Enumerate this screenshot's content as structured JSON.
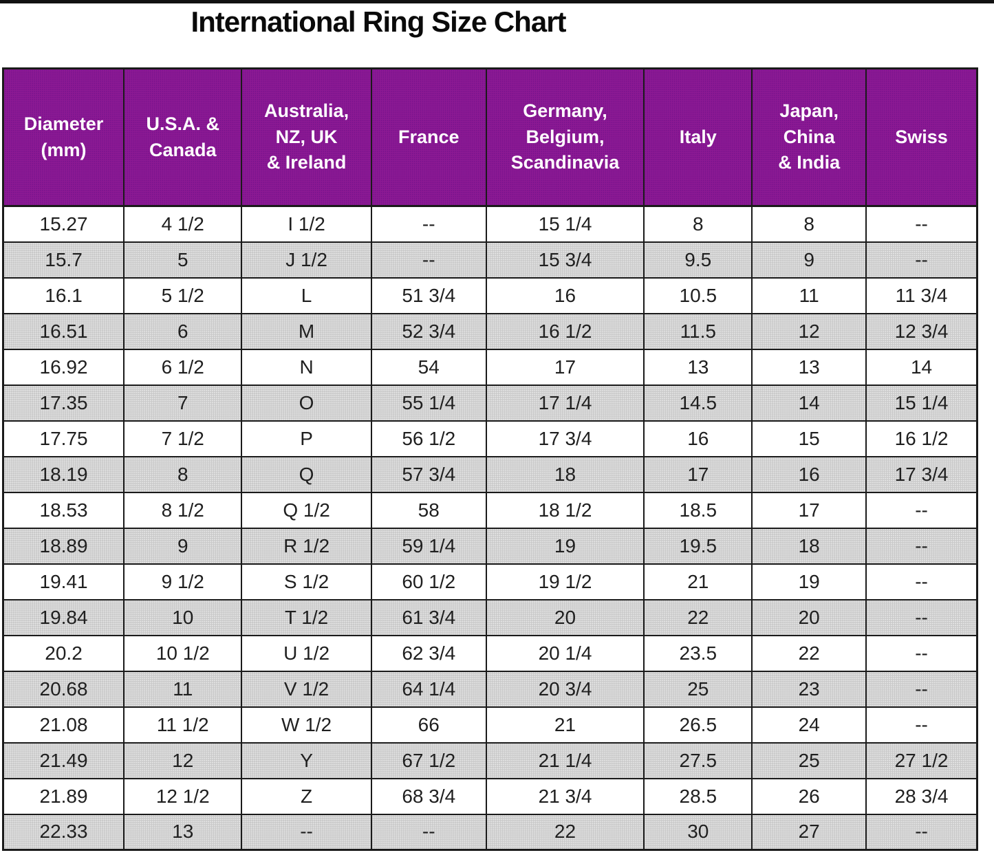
{
  "page": {
    "title": "International Ring Size Chart"
  },
  "colors": {
    "header_bg": "#8d1a94",
    "header_text": "#ffffff",
    "row_bg": "#ffffff",
    "row_alt_bg": "#c9c9c9",
    "border": "#1a1a1a",
    "text": "#1f1f1f",
    "title_text": "#0a0a0a",
    "topbar": "#111111"
  },
  "chart_data": {
    "type": "table",
    "title": "International Ring Size Chart",
    "columns": [
      "Diameter (mm)",
      "U.S.A. & Canada",
      "Australia, NZ, UK & Ireland",
      "France",
      "Germany, Belgium, Scandinavia",
      "Italy",
      "Japan, China & India",
      "Swiss"
    ],
    "columns_display": [
      "Diameter\n(mm)",
      "U.S.A. &\nCanada",
      "Australia,\nNZ, UK\n& Ireland",
      "France",
      "Germany,\nBelgium,\nScandinavia",
      "Italy",
      "Japan,\nChina\n& India",
      "Swiss"
    ],
    "column_keys": [
      "diameter-mm",
      "usa-canada",
      "australia-nz-uk-ireland",
      "france",
      "germany-belgium-scandinavia",
      "italy",
      "japan-china-india",
      "swiss"
    ],
    "col_widths_pct": [
      12.4,
      12.1,
      13.3,
      11.8,
      16.2,
      11.1,
      11.7,
      11.4
    ],
    "rows": [
      [
        "15.27",
        "4 1/2",
        "I 1/2",
        "--",
        "15 1/4",
        "8",
        "8",
        "--"
      ],
      [
        "15.7",
        "5",
        "J 1/2",
        "--",
        "15 3/4",
        "9.5",
        "9",
        "--"
      ],
      [
        "16.1",
        "5 1/2",
        "L",
        "51 3/4",
        "16",
        "10.5",
        "11",
        "11 3/4"
      ],
      [
        "16.51",
        "6",
        "M",
        "52 3/4",
        "16 1/2",
        "11.5",
        "12",
        "12 3/4"
      ],
      [
        "16.92",
        "6 1/2",
        "N",
        "54",
        "17",
        "13",
        "13",
        "14"
      ],
      [
        "17.35",
        "7",
        "O",
        "55 1/4",
        "17 1/4",
        "14.5",
        "14",
        "15 1/4"
      ],
      [
        "17.75",
        "7 1/2",
        "P",
        "56 1/2",
        "17 3/4",
        "16",
        "15",
        "16 1/2"
      ],
      [
        "18.19",
        "8",
        "Q",
        "57 3/4",
        "18",
        "17",
        "16",
        "17 3/4"
      ],
      [
        "18.53",
        "8 1/2",
        "Q 1/2",
        "58",
        "18 1/2",
        "18.5",
        "17",
        "--"
      ],
      [
        "18.89",
        "9",
        "R 1/2",
        "59 1/4",
        "19",
        "19.5",
        "18",
        "--"
      ],
      [
        "19.41",
        "9 1/2",
        "S 1/2",
        "60 1/2",
        "19 1/2",
        "21",
        "19",
        "--"
      ],
      [
        "19.84",
        "10",
        "T 1/2",
        "61 3/4",
        "20",
        "22",
        "20",
        "--"
      ],
      [
        "20.2",
        "10 1/2",
        "U 1/2",
        "62 3/4",
        "20 1/4",
        "23.5",
        "22",
        "--"
      ],
      [
        "20.68",
        "11",
        "V 1/2",
        "64 1/4",
        "20 3/4",
        "25",
        "23",
        "--"
      ],
      [
        "21.08",
        "11 1/2",
        "W 1/2",
        "66",
        "21",
        "26.5",
        "24",
        "--"
      ],
      [
        "21.49",
        "12",
        "Y",
        "67 1/2",
        "21 1/4",
        "27.5",
        "25",
        "27 1/2"
      ],
      [
        "21.89",
        "12 1/2",
        "Z",
        "68 3/4",
        "21 3/4",
        "28.5",
        "26",
        "28 3/4"
      ],
      [
        "22.33",
        "13",
        "--",
        "--",
        "22",
        "30",
        "27",
        "--"
      ]
    ],
    "layout": {
      "striped_rows": true,
      "first_data_row_shade": "white",
      "grid": true,
      "header_style": "purple background, white bold text"
    }
  }
}
